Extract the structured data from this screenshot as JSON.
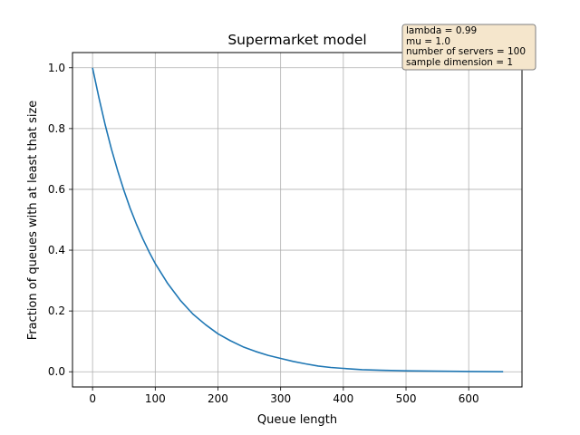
{
  "chart_data": {
    "type": "line",
    "title": "Supermarket model",
    "xlabel": "Queue length",
    "ylabel": "Fraction of queues with at least that size",
    "xlim": [
      -32,
      685
    ],
    "ylim": [
      -0.05,
      1.05
    ],
    "xticks": [
      0,
      100,
      200,
      300,
      400,
      500,
      600
    ],
    "yticks": [
      0.0,
      0.2,
      0.4,
      0.6,
      0.8,
      1.0
    ],
    "xtick_labels": [
      "0",
      "100",
      "200",
      "300",
      "400",
      "500",
      "600"
    ],
    "ytick_labels": [
      "0.0",
      "0.2",
      "0.4",
      "0.6",
      "0.8",
      "1.0"
    ],
    "grid": true,
    "line_color": "#1f77b4",
    "series": [
      {
        "x": [
          0,
          10,
          20,
          30,
          40,
          50,
          60,
          70,
          80,
          90,
          100,
          120,
          140,
          160,
          180,
          200,
          220,
          240,
          260,
          280,
          300,
          320,
          340,
          360,
          380,
          400,
          430,
          460,
          500,
          550,
          600,
          655
        ],
        "values": [
          1.0,
          0.902,
          0.813,
          0.733,
          0.662,
          0.597,
          0.538,
          0.485,
          0.438,
          0.395,
          0.356,
          0.29,
          0.235,
          0.19,
          0.155,
          0.125,
          0.102,
          0.082,
          0.067,
          0.054,
          0.044,
          0.034,
          0.026,
          0.019,
          0.014,
          0.011,
          0.007,
          0.005,
          0.003,
          0.002,
          0.001,
          0.0
        ]
      }
    ],
    "annotation": {
      "lines": [
        "lambda = 0.99",
        "mu = 1.0",
        "number of servers = 100",
        "sample dimension = 1"
      ],
      "placement": "top-right",
      "background": "#f5e6cc",
      "border": "#7f7f7f"
    }
  }
}
